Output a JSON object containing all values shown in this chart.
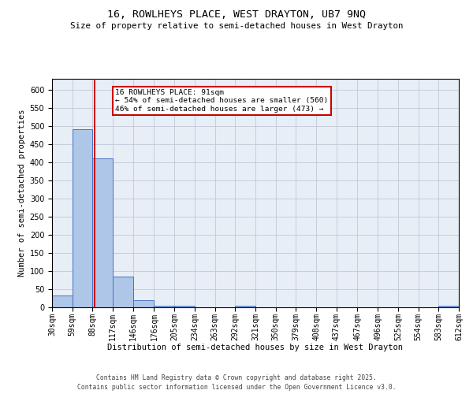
{
  "title": "16, ROWLHEYS PLACE, WEST DRAYTON, UB7 9NQ",
  "subtitle": "Size of property relative to semi-detached houses in West Drayton",
  "xlabel": "Distribution of semi-detached houses by size in West Drayton",
  "ylabel": "Number of semi-detached properties",
  "footer_line1": "Contains HM Land Registry data © Crown copyright and database right 2025.",
  "footer_line2": "Contains public sector information licensed under the Open Government Licence v3.0.",
  "property_label": "16 ROWLHEYS PLACE: 91sqm",
  "smaller_label": "← 54% of semi-detached houses are smaller (560)",
  "larger_label": "46% of semi-detached houses are larger (473) →",
  "property_size": 91,
  "bin_edges": [
    30,
    59,
    88,
    117,
    146,
    176,
    205,
    234,
    263,
    292,
    321,
    350,
    379,
    408,
    437,
    467,
    496,
    525,
    554,
    583,
    612
  ],
  "bin_labels": [
    "30sqm",
    "59sqm",
    "88sqm",
    "117sqm",
    "146sqm",
    "176sqm",
    "205sqm",
    "234sqm",
    "263sqm",
    "292sqm",
    "321sqm",
    "350sqm",
    "379sqm",
    "408sqm",
    "437sqm",
    "467sqm",
    "496sqm",
    "525sqm",
    "554sqm",
    "583sqm",
    "612sqm"
  ],
  "counts": [
    33,
    490,
    410,
    85,
    20,
    5,
    5,
    0,
    0,
    5,
    0,
    0,
    0,
    0,
    0,
    0,
    0,
    0,
    0,
    5
  ],
  "bar_color": "#aec6e8",
  "bar_edge_color": "#4472c4",
  "vline_color": "#cc0000",
  "vline_x": 91,
  "background_color": "#ffffff",
  "axes_bg_color": "#e8eef6",
  "grid_color": "#c0c8d8",
  "annotation_box_color": "#cc0000",
  "ylim": [
    0,
    630
  ],
  "yticks": [
    0,
    50,
    100,
    150,
    200,
    250,
    300,
    350,
    400,
    450,
    500,
    550,
    600
  ],
  "title_fontsize": 9.5,
  "subtitle_fontsize": 7.8,
  "axis_label_fontsize": 7.5,
  "tick_fontsize": 7.0,
  "footer_fontsize": 5.8,
  "annotation_fontsize": 6.8
}
